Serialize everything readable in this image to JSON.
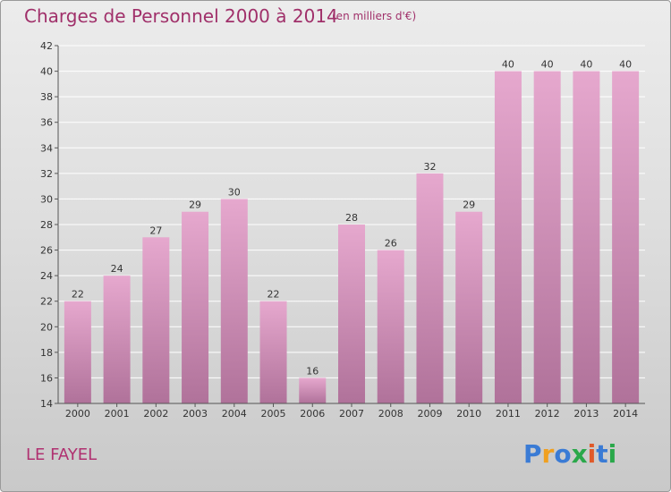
{
  "title": "Charges de Personnel 2000 à 2014",
  "subtitle": "(en milliers d'€)",
  "town": "LE FAYEL",
  "logo_text": "Proxiti",
  "colors": {
    "title": "#a0306a",
    "bar_top": "#e6a8ce",
    "bar_bottom": "#b0729a"
  },
  "chart_data": {
    "type": "bar",
    "categories": [
      "2000",
      "2001",
      "2002",
      "2003",
      "2004",
      "2005",
      "2006",
      "2007",
      "2008",
      "2009",
      "2010",
      "2011",
      "2012",
      "2013",
      "2014"
    ],
    "values": [
      22,
      24,
      27,
      29,
      30,
      22,
      16,
      28,
      26,
      32,
      29,
      40,
      40,
      40,
      40
    ],
    "ylim": [
      14,
      42
    ],
    "yticks": [
      14,
      16,
      18,
      20,
      22,
      24,
      26,
      28,
      30,
      32,
      34,
      36,
      38,
      40,
      42
    ],
    "grid": true
  }
}
